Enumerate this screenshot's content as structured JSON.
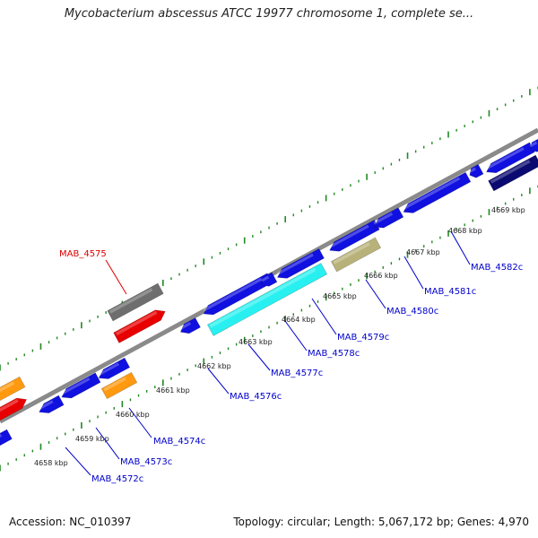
{
  "title": "Mycobacterium abscessus ATCC 19977 chromosome 1, complete se...",
  "footer": {
    "accession": "Accession: NC_010397",
    "summary": "Topology: circular; Length: 5,067,172 bp; Genes: 4,970"
  },
  "colors": {
    "forward_gene": "#e80000",
    "forward_other": "#6e6e6e",
    "reverse_gene": "#1010e0",
    "highlight": "#28f0f0",
    "olive": "#b8b27a",
    "orange": "#ff9a10",
    "navy": "#0a0a70",
    "backbone": "#8a8a8a",
    "tick": "#228822",
    "link_forward": "#dd0000",
    "link_reverse": "#0000cc"
  },
  "kbp_labels": [
    "4658 kbp",
    "4659 kbp",
    "4660 kbp",
    "4661 kbp",
    "4662 kbp",
    "4663 kbp",
    "4664 kbp",
    "4665 kbp",
    "4666 kbp",
    "4667 kbp",
    "4668 kbp",
    "4669 kbp"
  ],
  "gene_labels": [
    {
      "name": "MAB_4575",
      "strand": "forward"
    },
    {
      "name": "MAB_4572c",
      "strand": "reverse"
    },
    {
      "name": "MAB_4573c",
      "strand": "reverse"
    },
    {
      "name": "MAB_4574c",
      "strand": "reverse"
    },
    {
      "name": "MAB_4576c",
      "strand": "reverse"
    },
    {
      "name": "MAB_4577c",
      "strand": "reverse"
    },
    {
      "name": "MAB_4578c",
      "strand": "reverse"
    },
    {
      "name": "MAB_4579c",
      "strand": "reverse"
    },
    {
      "name": "MAB_4580c",
      "strand": "reverse"
    },
    {
      "name": "MAB_4581c",
      "strand": "reverse"
    },
    {
      "name": "MAB_4582c",
      "strand": "reverse"
    }
  ]
}
